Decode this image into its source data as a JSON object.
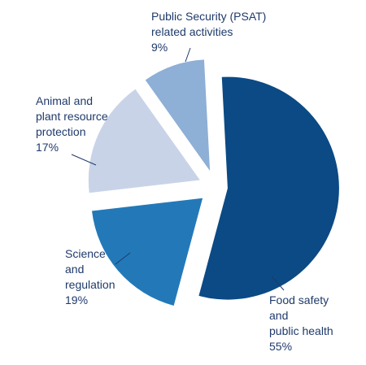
{
  "chart_data": {
    "type": "pie",
    "slices": [
      {
        "label_lines": [
          "Food safety",
          "and",
          "public health"
        ],
        "value_label": "55%",
        "value": 55,
        "color": "#0b4a84"
      },
      {
        "label_lines": [
          "Science",
          "and",
          "regulation"
        ],
        "value_label": "19%",
        "value": 19,
        "color": "#2379b8"
      },
      {
        "label_lines": [
          "Animal and",
          "plant resource",
          "protection"
        ],
        "value_label": "17%",
        "value": 17,
        "color": "#c9d3e8"
      },
      {
        "label_lines": [
          "Public Security (PSAT)",
          "related activities"
        ],
        "value_label": "9%",
        "value": 9,
        "color": "#8eafd6"
      }
    ]
  }
}
